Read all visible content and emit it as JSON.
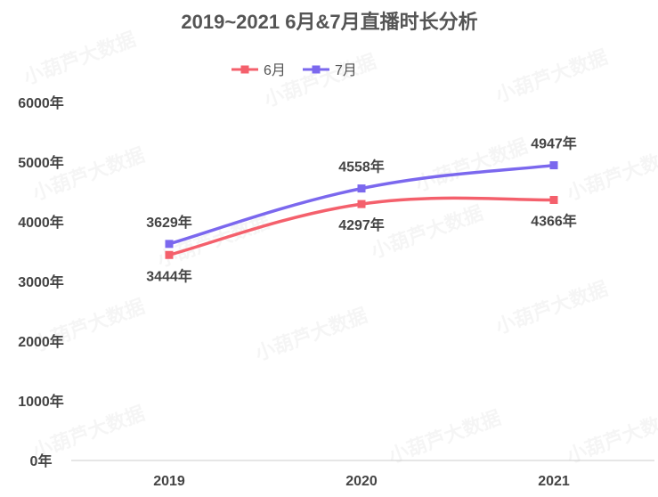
{
  "watermark": "小葫芦大数据",
  "chart_data": {
    "type": "line",
    "title": "2019~2021 6月&7月直播时长分析",
    "categories": [
      "2019",
      "2020",
      "2021"
    ],
    "series": [
      {
        "name": "6月",
        "color": "#f4606c",
        "values": [
          3444,
          4297,
          4366
        ],
        "labels": [
          "3444年",
          "4297年",
          "4366年"
        ],
        "label_position": "below"
      },
      {
        "name": "7月",
        "color": "#7b68ee",
        "values": [
          3629,
          4558,
          4947
        ],
        "labels": [
          "3629年",
          "4558年",
          "4947年"
        ],
        "label_position": "above"
      }
    ],
    "ylim": [
      0,
      6000
    ],
    "yticks": [
      0,
      1000,
      2000,
      3000,
      4000,
      5000,
      6000
    ],
    "ytick_labels": [
      "0年",
      "1000年",
      "2000年",
      "3000年",
      "4000年",
      "5000年",
      "6000年"
    ],
    "xlabel": "",
    "ylabel": "",
    "grid": false,
    "legend_position": "top-center"
  }
}
